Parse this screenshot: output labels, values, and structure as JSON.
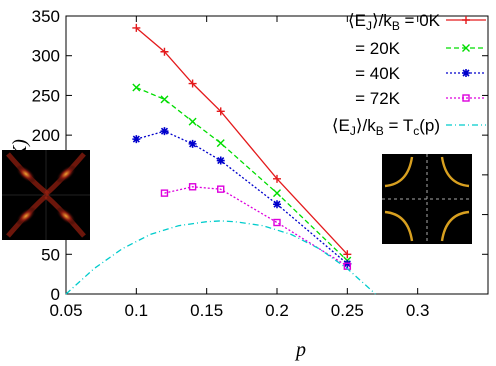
{
  "chart_data": {
    "type": "line",
    "xlabel": "p",
    "ylabel": "T(K)",
    "xlim": [
      0.05,
      0.35
    ],
    "ylim": [
      0,
      350
    ],
    "xticks": [
      "0.05",
      "0.1",
      "0.15",
      "0.2",
      "0.25",
      "0.3"
    ],
    "yticks": [
      "0",
      "50",
      "100",
      "150",
      "200",
      "250",
      "300",
      "350"
    ],
    "series": [
      {
        "name": "⟨E_J⟩/k_B = 0K",
        "color": "#e41a1c",
        "style": "solid",
        "marker": "plus",
        "x": [
          0.1,
          0.12,
          0.14,
          0.16,
          0.2,
          0.25
        ],
        "y": [
          335,
          305,
          265,
          230,
          145,
          50
        ]
      },
      {
        "name": "= 20K",
        "color": "#00dd00",
        "style": "dashed",
        "marker": "x",
        "x": [
          0.1,
          0.12,
          0.14,
          0.16,
          0.2,
          0.25
        ],
        "y": [
          260,
          245,
          217,
          190,
          127,
          42
        ]
      },
      {
        "name": "= 40K",
        "color": "#0000cc",
        "style": "dotted",
        "marker": "star",
        "x": [
          0.1,
          0.12,
          0.14,
          0.16,
          0.2,
          0.25
        ],
        "y": [
          195,
          205,
          189,
          168,
          113,
          38
        ]
      },
      {
        "name": "= 72K",
        "color": "#dd00dd",
        "style": "dotted",
        "marker": "square",
        "x": [
          0.12,
          0.14,
          0.16,
          0.2,
          0.25
        ],
        "y": [
          127,
          135,
          132,
          90,
          35
        ]
      },
      {
        "name": "⟨E_J⟩/k_B = T_c(p)",
        "color": "#00cccc",
        "style": "dashdot",
        "marker": "none",
        "x": [
          0.05,
          0.07,
          0.09,
          0.11,
          0.13,
          0.15,
          0.16,
          0.17,
          0.19,
          0.21,
          0.23,
          0.25,
          0.27
        ],
        "y": [
          0,
          32,
          57,
          75,
          86,
          91,
          92,
          91,
          86,
          75,
          57,
          32,
          0
        ]
      }
    ]
  },
  "legend": {
    "row1_prefix": "⟨E",
    "row1_sub": "J",
    "row1_mid": "⟩/k",
    "row1_sub2": "B",
    "row1_value": " = 0K",
    "row2": "= 20K",
    "row3": "= 40K",
    "row4": "= 72K",
    "row5_value": " = T",
    "row5_sub": "c",
    "row5_tail": "(p)"
  },
  "insets": {
    "left": {
      "kind": "heatmap",
      "colors": [
        "#000000",
        "#8a1a10",
        "#f0a030"
      ]
    },
    "right": {
      "kind": "fermi-surface",
      "colors": [
        "#000000",
        "#d8a020",
        "#aaaaaa"
      ]
    }
  }
}
